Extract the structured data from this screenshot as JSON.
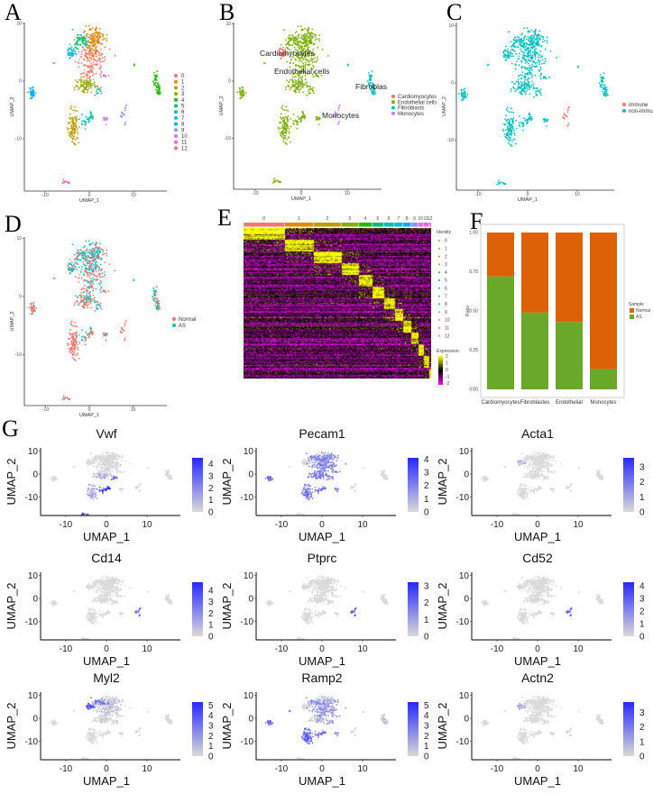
{
  "panels": {
    "A": "A",
    "B": "B",
    "C": "C",
    "D": "D",
    "E": "E",
    "F": "F",
    "G": "G"
  },
  "chart_data": {
    "umap": {
      "type": "scatter",
      "xlabel": "UMAP_1",
      "ylabel": "UMAP_2",
      "xticks": [
        "-10",
        "0",
        "10"
      ],
      "yticks": [
        "10",
        "0",
        "-10"
      ],
      "clusters": [
        {
          "id": "0",
          "color": "#F8766D",
          "blobs": [
            [
              0,
              3.5,
              1.5,
              2.4,
              170
            ],
            [
              2,
              5,
              0.8,
              1.4,
              40
            ]
          ]
        },
        {
          "id": "1",
          "color": "#E18A00",
          "blobs": [
            [
              1.5,
              7.5,
              1.2,
              0.9,
              90
            ],
            [
              0.6,
              5.6,
              0.7,
              0.9,
              30
            ]
          ]
        },
        {
          "id": "2",
          "color": "#BE9C00",
          "blobs": [
            [
              -3.5,
              -8,
              0.55,
              1.3,
              110
            ]
          ]
        },
        {
          "id": "3",
          "color": "#8CAB00",
          "blobs": [
            [
              -1,
              -0.6,
              1.1,
              0.55,
              70
            ],
            [
              -1,
              -1.6,
              0.3,
              0.4,
              10
            ]
          ]
        },
        {
          "id": "4",
          "color": "#24B700",
          "blobs": [
            [
              15,
              0.6,
              0.2,
              0.6,
              25
            ],
            [
              15.7,
              -1.4,
              0.3,
              0.6,
              35
            ],
            [
              10.2,
              2.8,
              0.1,
              0.1,
              2
            ]
          ]
        },
        {
          "id": "5",
          "color": "#00BE70",
          "blobs": [
            [
              -2,
              7,
              0.9,
              0.8,
              60
            ]
          ]
        },
        {
          "id": "6",
          "color": "#00C1AB",
          "blobs": [
            [
              0.3,
              -6,
              0.2,
              0.5,
              20
            ],
            [
              -1,
              -7,
              0.6,
              0.5,
              20
            ],
            [
              2,
              -2,
              0.25,
              0.4,
              10
            ]
          ]
        },
        {
          "id": "7",
          "color": "#00BBDA",
          "blobs": [
            [
              -4,
              5,
              0.5,
              0.5,
              40
            ]
          ]
        },
        {
          "id": "8",
          "color": "#00ACFC",
          "blobs": [
            [
              -13,
              -2,
              0.35,
              0.5,
              40
            ]
          ]
        },
        {
          "id": "9",
          "color": "#8B93FF",
          "blobs": [
            [
              7.5,
              -6,
              0.3,
              0.4,
              10
            ],
            [
              8.2,
              -4.6,
              0.15,
              0.3,
              5
            ],
            [
              8,
              -7.5,
              0.1,
              0.2,
              3
            ]
          ]
        },
        {
          "id": "10",
          "color": "#D575FE",
          "blobs": [
            [
              3.7,
              -6.6,
              0.3,
              0.3,
              15
            ],
            [
              3.5,
              1,
              0.3,
              0.1,
              8
            ]
          ]
        },
        {
          "id": "11",
          "color": "#F962DD",
          "blobs": [
            [
              -8,
              3.2,
              0.1,
              0.1,
              2
            ]
          ]
        },
        {
          "id": "12",
          "color": "#FF65AC",
          "blobs": [
            [
              -5.5,
              -17.5,
              0.5,
              0.2,
              12
            ]
          ]
        }
      ],
      "cell_types": {
        "labels": [
          "Cardiomyocytes",
          "Endothelial cells",
          "Fibroblasts",
          "Monocytes"
        ],
        "colors": [
          "#F8766D",
          "#7CAE00",
          "#00BFC4",
          "#C77CFF"
        ],
        "cluster_map": {
          "7": 0,
          "4": 2,
          "9": 3
        },
        "annotations": [
          "Cardiomyocytes",
          "Endothelial cells",
          "Fibroblas",
          "Monocytes"
        ]
      },
      "immune": {
        "labels": [
          "immune",
          "non-immun"
        ],
        "colors": [
          "#F8766D",
          "#00BFC4"
        ],
        "immune_clusters": [
          "9"
        ]
      },
      "sample": {
        "labels": [
          "Normal",
          "AS"
        ],
        "colors": [
          "#F8766D",
          "#00BFC4"
        ],
        "as_fraction_by_cluster": {
          "0": 0.5,
          "1": 0.5,
          "2": 0.05,
          "3": 0.3,
          "4": 0.4,
          "5": 0.6,
          "6": 0.4,
          "7": 0.7,
          "8": 0.05,
          "9": 0.1,
          "10": 0.3,
          "11": 0,
          "12": 0.05
        }
      }
    },
    "heatmap": {
      "type": "heatmap",
      "identity_title": "Identity",
      "identities": [
        "0",
        "1",
        "2",
        "3",
        "4",
        "5",
        "6",
        "7",
        "8",
        "9",
        "10",
        "11",
        "12"
      ],
      "relative_cells": [
        135,
        95,
        92,
        57,
        45,
        38,
        35,
        28,
        28,
        22,
        18,
        18,
        8
      ],
      "expression_title": "Expression",
      "expression_ticks": [
        "2",
        "1",
        "0",
        "-1",
        "-2"
      ],
      "expression_range": [
        -2,
        2
      ]
    },
    "bar": {
      "type": "bar",
      "categories": [
        "Cardiomyocytes",
        "Fibroblastes",
        "Endothelial",
        "Monocytes"
      ],
      "series": [
        {
          "name": "AS",
          "color": "#6AA82A",
          "values": [
            0.72,
            0.49,
            0.43,
            0.13
          ]
        },
        {
          "name": "Normal",
          "color": "#DD6106",
          "values": [
            0.28,
            0.51,
            0.57,
            0.87
          ]
        }
      ],
      "ylabel": "Ratio",
      "yticks": [
        "1.00",
        "0.75",
        "0.50",
        "0.25",
        "0.00"
      ],
      "ylim": [
        0,
        1
      ],
      "legend_title": "Sample",
      "legend": [
        "Normal",
        "AS"
      ]
    },
    "features": [
      {
        "gene": "Vwf",
        "max": 4.5,
        "ticks": [
          "4",
          "3",
          "2",
          "1",
          "0"
        ],
        "expr": {
          "6": 0.9,
          "2": 0.35,
          "12": 0.8,
          "3": 0.3,
          "0": 0.08
        }
      },
      {
        "gene": "Pecam1",
        "max": 4.1,
        "ticks": [
          "4",
          "3",
          "2",
          "1",
          "0"
        ],
        "expr": {
          "0": 0.55,
          "1": 0.55,
          "2": 0.6,
          "3": 0.6,
          "5": 0.5,
          "6": 0.6,
          "8": 0.7,
          "10": 0.6
        }
      },
      {
        "gene": "Acta1",
        "max": 3.6,
        "ticks": [
          "3",
          "2",
          "1",
          "0"
        ],
        "expr": {
          "7": 0.3
        }
      },
      {
        "gene": "Cd14",
        "max": 4.7,
        "ticks": [
          "4",
          "3",
          "2",
          "1",
          "0"
        ],
        "expr": {
          "9": 0.7
        }
      },
      {
        "gene": "Ptprc",
        "max": 3.2,
        "ticks": [
          "3",
          "2",
          "1",
          "0"
        ],
        "expr": {
          "9": 0.8
        }
      },
      {
        "gene": "Cd52",
        "max": 4.3,
        "ticks": [
          "4",
          "3",
          "2",
          "1",
          "0"
        ],
        "expr": {
          "9": 0.8,
          "7": 0.05
        }
      },
      {
        "gene": "Myl2",
        "max": 5.3,
        "ticks": [
          "5",
          "4",
          "3",
          "2",
          "1",
          "0"
        ],
        "expr": {
          "7": 0.8,
          "5": 0.6,
          "0": 0.2,
          "1": 0.3
        }
      },
      {
        "gene": "Ramp2",
        "max": 5.3,
        "ticks": [
          "5",
          "4",
          "3",
          "2",
          "1",
          "0"
        ],
        "expr": {
          "0": 0.45,
          "1": 0.45,
          "2": 0.7,
          "5": 0.45,
          "6": 0.6,
          "8": 0.7,
          "10": 0.5,
          "11": 0.7,
          "4": 0.25
        }
      },
      {
        "gene": "Actn2",
        "max": 3.7,
        "ticks": [
          "3",
          "2",
          "1",
          "0"
        ],
        "expr": {
          "7": 0.35,
          "10": 0.1,
          "9": 0.1
        }
      }
    ]
  }
}
